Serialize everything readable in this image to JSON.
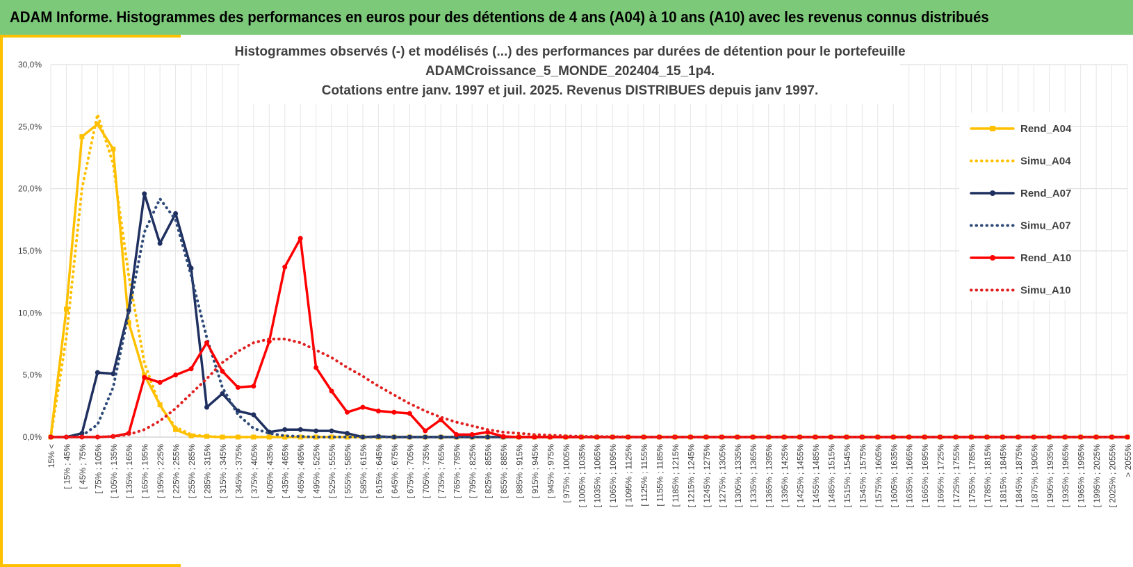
{
  "header": {
    "title": "ADAM Informe. Histogrammes des performances en euros pour des détentions de 4 ans (A04) à 10 ans (A10) avec les revenus connus distribués"
  },
  "chart_data": {
    "type": "line",
    "title": [
      "Histogrammes observés (-) et modélisés (...) des performances par durées de détention pour  le portefeuille",
      "ADAMCroissance_5_MONDE_202404_15_1p4.",
      "Cotations entre janv. 1997 et juil. 2025. Revenus DISTRIBUES depuis janv 1997."
    ],
    "categories": [
      "15% <",
      "[ 15% ; 45%",
      "[ 45% ; 75%",
      "[ 75% ; 105%",
      "[ 105% ; 135%",
      "[ 135% ; 165%",
      "[ 165% ; 195%",
      "[ 195% ; 225%",
      "[ 225% ; 255%",
      "[ 255% ; 285%",
      "[ 285% ; 315%",
      "[ 315% ; 345%",
      "[ 345% ; 375%",
      "[ 375% ; 405%",
      "[ 405% ; 435%",
      "[ 435% ; 465%",
      "[ 465% ; 495%",
      "[ 495% ; 525%",
      "[ 525% ; 555%",
      "[ 555% ; 585%",
      "[ 585% ; 615%",
      "[ 615% ; 645%",
      "[ 645% ; 675%",
      "[ 675% ; 705%",
      "[ 705% ; 735%",
      "[ 735% ; 765%",
      "[ 765% ; 795%",
      "[ 795% ; 825%",
      "[ 825% ; 855%",
      "[ 855% ; 885%",
      "[ 885% ; 915%",
      "[ 915% ; 945%",
      "[ 945% ; 975%",
      "[ 975% ; 1005%",
      "[ 1005% ; 1035%",
      "[ 1035% ; 1065%",
      "[ 1065% ; 1095%",
      "[ 1095% ; 1125%",
      "[ 1125% ; 1155%",
      "[ 1155% ; 1185%",
      "[ 1185% ; 1215%",
      "[ 1215% ; 1245%",
      "[ 1245% ; 1275%",
      "[ 1275% ; 1305%",
      "[ 1305% ; 1335%",
      "[ 1335% ; 1365%",
      "[ 1365% ; 1395%",
      "[ 1395% ; 1425%",
      "[ 1425% ; 1455%",
      "[ 1455% ; 1485%",
      "[ 1485% ; 1515%",
      "[ 1515% ; 1545%",
      "[ 1545% ; 1575%",
      "[ 1575% ; 1605%",
      "[ 1605% ; 1635%",
      "[ 1635% ; 1665%",
      "[ 1665% ; 1695%",
      "[ 1695% ; 1725%",
      "[ 1725% ; 1755%",
      "[ 1755% ; 1785%",
      "[ 1785% ; 1815%",
      "[ 1815% ; 1845%",
      "[ 1845% ; 1875%",
      "[ 1875% ; 1905%",
      "[ 1905% ; 1935%",
      "[ 1935% ; 1965%",
      "[ 1965% ; 1995%",
      "[ 1995% ; 2025%",
      "[ 2025% ; 2055%",
      "> 2055%"
    ],
    "series": [
      {
        "name": "Rend_A04",
        "color": "#ffc000",
        "style": "solid",
        "marker": "square",
        "values": [
          0,
          10.3,
          24.2,
          25.2,
          23.2,
          9.2,
          5.0,
          2.6,
          0.6,
          0.1,
          0.05,
          0,
          0,
          0,
          0,
          0,
          0,
          0,
          0,
          0,
          0,
          0,
          0,
          0,
          0,
          0,
          0,
          0,
          0,
          0,
          0,
          0,
          0,
          0,
          0,
          0,
          0,
          0,
          0,
          0,
          0,
          0,
          0,
          0,
          0,
          0,
          0,
          0,
          0,
          0,
          0,
          0,
          0,
          0,
          0,
          0,
          0,
          0,
          0,
          0,
          0,
          0,
          0,
          0,
          0,
          0,
          0,
          0,
          0,
          0
        ]
      },
      {
        "name": "Simu_A04",
        "color": "#ffc000",
        "style": "dotted",
        "values": [
          0,
          8,
          20,
          26,
          22,
          13,
          6,
          2.5,
          0.8,
          0.2,
          0.05,
          0,
          0,
          0,
          0,
          0,
          0,
          0,
          0,
          0,
          0,
          0,
          0,
          0,
          0,
          0,
          0,
          0,
          0,
          0,
          0,
          0,
          0,
          0,
          0,
          0,
          0,
          0,
          0,
          0,
          0,
          0,
          0,
          0,
          0,
          0,
          0,
          0,
          0,
          0,
          0,
          0,
          0,
          0,
          0,
          0,
          0,
          0,
          0,
          0,
          0,
          0,
          0,
          0,
          0,
          0,
          0,
          0,
          0,
          0
        ]
      },
      {
        "name": "Rend_A07",
        "color": "#1f3060",
        "style": "solid",
        "marker": "circle",
        "values": [
          0,
          0,
          0.3,
          5.2,
          5.1,
          10.2,
          19.6,
          15.6,
          18.0,
          13.6,
          2.4,
          3.5,
          2.1,
          1.8,
          0.4,
          0.6,
          0.6,
          0.5,
          0.5,
          0.3,
          0,
          0.05,
          0,
          0,
          0,
          0,
          0,
          0,
          0,
          0,
          0,
          0,
          0,
          0,
          0,
          0,
          0,
          0,
          0,
          0,
          0,
          0,
          0,
          0,
          0,
          0,
          0,
          0,
          0,
          0,
          0,
          0,
          0,
          0,
          0,
          0,
          0,
          0,
          0,
          0,
          0,
          0,
          0,
          0,
          0,
          0,
          0,
          0,
          0,
          0
        ]
      },
      {
        "name": "Simu_A07",
        "color": "#2e4a78",
        "style": "dotted",
        "values": [
          0,
          0,
          0.1,
          1,
          4,
          10,
          16.5,
          19.2,
          17.5,
          13,
          8,
          4,
          1.8,
          0.7,
          0.3,
          0.1,
          0.05,
          0,
          0,
          0,
          0,
          0,
          0,
          0,
          0,
          0,
          0,
          0,
          0,
          0,
          0,
          0,
          0,
          0,
          0,
          0,
          0,
          0,
          0,
          0,
          0,
          0,
          0,
          0,
          0,
          0,
          0,
          0,
          0,
          0,
          0,
          0,
          0,
          0,
          0,
          0,
          0,
          0,
          0,
          0,
          0,
          0,
          0,
          0,
          0,
          0,
          0,
          0,
          0,
          0
        ]
      },
      {
        "name": "Rend_A10",
        "color": "#ff0000",
        "style": "solid",
        "marker": "circle",
        "values": [
          0,
          0,
          0,
          0,
          0.05,
          0.3,
          4.8,
          4.4,
          5.0,
          5.5,
          7.6,
          5.3,
          4.0,
          4.1,
          7.7,
          13.7,
          16.0,
          5.6,
          3.7,
          2.0,
          2.4,
          2.1,
          2.0,
          1.9,
          0.5,
          1.4,
          0.2,
          0.2,
          0.4,
          0.05,
          0,
          0,
          0,
          0,
          0,
          0,
          0,
          0,
          0,
          0,
          0,
          0,
          0,
          0,
          0,
          0,
          0,
          0,
          0,
          0,
          0,
          0,
          0,
          0,
          0,
          0,
          0,
          0,
          0,
          0,
          0,
          0,
          0,
          0,
          0,
          0,
          0,
          0,
          0,
          0
        ]
      },
      {
        "name": "Simu_A10",
        "color": "#e02020",
        "style": "dotted",
        "values": [
          0,
          0,
          0,
          0,
          0.05,
          0.2,
          0.6,
          1.3,
          2.3,
          3.5,
          4.7,
          6.0,
          6.9,
          7.6,
          7.9,
          7.9,
          7.6,
          7.0,
          6.4,
          5.6,
          4.9,
          4.1,
          3.4,
          2.7,
          2.1,
          1.6,
          1.2,
          0.9,
          0.6,
          0.4,
          0.3,
          0.2,
          0.15,
          0.1,
          0.05,
          0.05,
          0.03,
          0.02,
          0,
          0,
          0,
          0,
          0,
          0,
          0,
          0,
          0,
          0,
          0,
          0,
          0,
          0,
          0,
          0,
          0,
          0,
          0,
          0,
          0,
          0,
          0,
          0,
          0,
          0,
          0,
          0,
          0,
          0,
          0,
          0
        ]
      }
    ],
    "ylim": [
      0,
      30
    ],
    "yticks": [
      {
        "value": 0,
        "label": "0,0%"
      },
      {
        "value": 5,
        "label": "5,0%"
      },
      {
        "value": 10,
        "label": "10,0%"
      },
      {
        "value": 15,
        "label": "15,0%"
      },
      {
        "value": 20,
        "label": "20,0%"
      },
      {
        "value": 25,
        "label": "25,0%"
      },
      {
        "value": 30,
        "label": "30,0%"
      }
    ],
    "grid": true,
    "legend": "right"
  }
}
